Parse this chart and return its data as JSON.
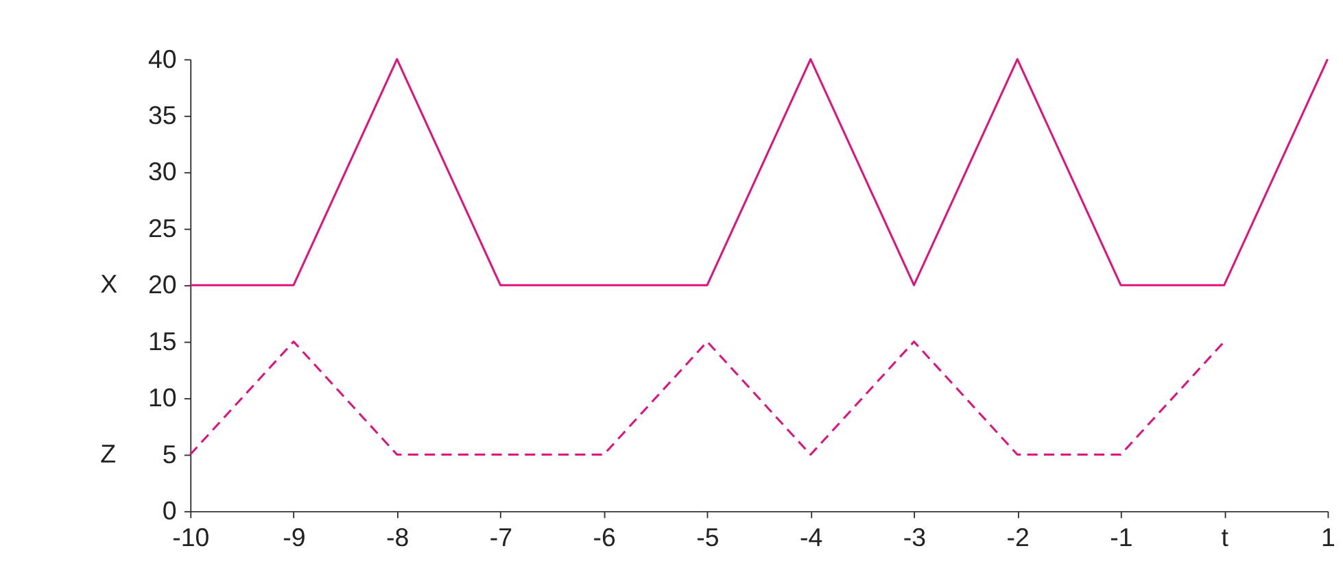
{
  "chart_data": {
    "type": "line",
    "x": [
      -10,
      -9,
      -8,
      -7,
      -6,
      -5,
      -4,
      -3,
      -2,
      -1,
      0,
      1
    ],
    "series": [
      {
        "name": "X",
        "color": "#e0107c",
        "line_style": "solid",
        "values": [
          20,
          20,
          40,
          20,
          20,
          20,
          40,
          20,
          40,
          20,
          20,
          40
        ]
      },
      {
        "name": "Z",
        "color": "#e0107c",
        "line_style": "dashed",
        "values": [
          5,
          15,
          5,
          5,
          5,
          15,
          5,
          15,
          5,
          5,
          15,
          null
        ]
      }
    ],
    "xlim": [
      -10,
      1
    ],
    "xticks": [
      -10,
      -9,
      -8,
      -7,
      -6,
      -5,
      -4,
      -3,
      -2,
      -1,
      {
        "value": 0,
        "label": "t"
      },
      1
    ],
    "ylim": [
      0,
      40
    ],
    "yticks": [
      0,
      5,
      10,
      15,
      20,
      25,
      30,
      35,
      40
    ],
    "grid": false,
    "marker": "none"
  }
}
